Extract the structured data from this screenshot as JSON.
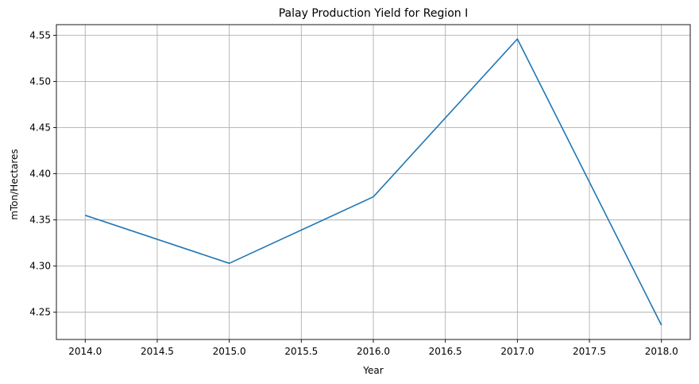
{
  "chart_data": {
    "type": "line",
    "title": "Palay Production Yield for Region I",
    "xlabel": "Year",
    "ylabel": "mTon/Hectares",
    "x": [
      2014,
      2015,
      2016,
      2017,
      2018
    ],
    "series": [
      {
        "values": [
          4.355,
          4.303,
          4.375,
          4.546,
          4.236
        ],
        "color": "#1f77b4"
      }
    ],
    "xlim": [
      2013.8,
      2018.2
    ],
    "ylim": [
      4.2205,
      4.5615
    ],
    "x_ticks": [
      2014.0,
      2014.5,
      2015.0,
      2015.5,
      2016.0,
      2016.5,
      2017.0,
      2017.5,
      2018.0
    ],
    "x_tick_labels": [
      "2014.0",
      "2014.5",
      "2015.0",
      "2015.5",
      "2016.0",
      "2016.5",
      "2017.0",
      "2017.5",
      "2018.0"
    ],
    "y_ticks": [
      4.25,
      4.3,
      4.35,
      4.4,
      4.45,
      4.5,
      4.55
    ],
    "y_tick_labels": [
      "4.25",
      "4.30",
      "4.35",
      "4.40",
      "4.45",
      "4.50",
      "4.55"
    ],
    "grid": true,
    "legend": "none"
  }
}
